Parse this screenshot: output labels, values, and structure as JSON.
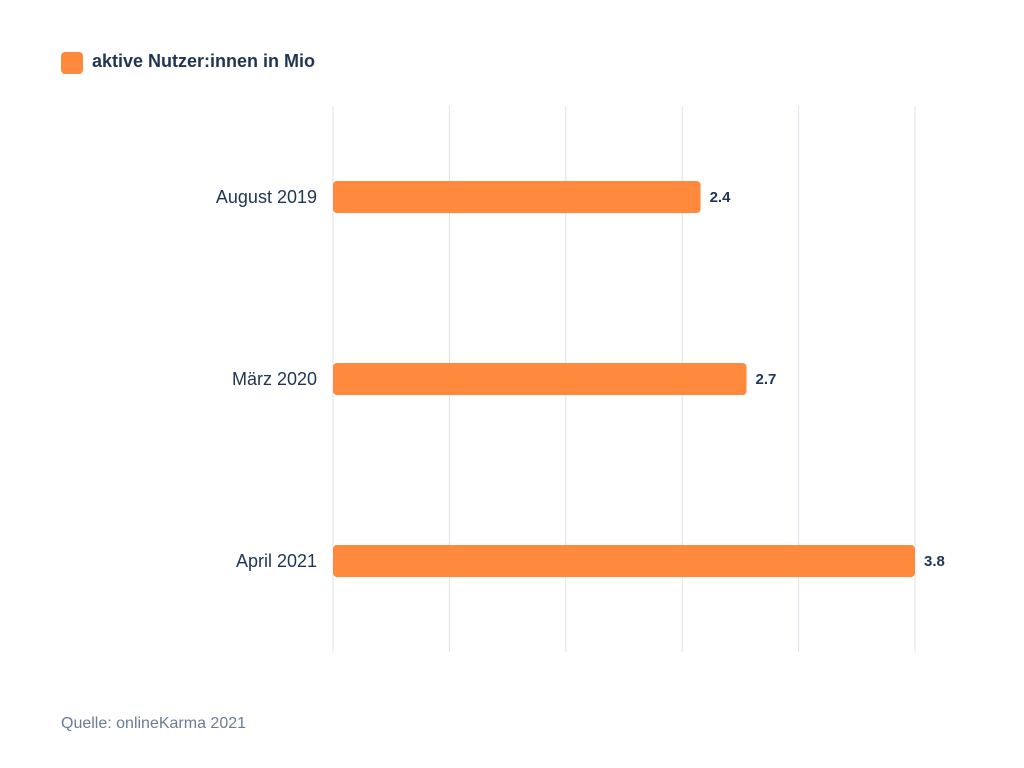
{
  "chart_data": {
    "type": "bar",
    "orientation": "horizontal",
    "categories": [
      "August 2019",
      "März 2020",
      "April 2021"
    ],
    "series": [
      {
        "name": "aktive Nutzer:innen in Mio",
        "values": [
          2.4,
          2.7,
          3.8
        ],
        "color": "#ff8a3d"
      }
    ],
    "value_labels": [
      "2.4",
      "2.7",
      "3.8"
    ],
    "xlim": [
      0,
      3.8
    ],
    "grid": true,
    "legend_position": "top-left",
    "title": "",
    "xlabel": "",
    "ylabel": ""
  },
  "source": "Quelle: onlineKarma 2021",
  "colors": {
    "bar": "#ff8a3d",
    "text": "#1f3553",
    "grid": "#dde1ea",
    "source_text": "#6b7c93"
  }
}
